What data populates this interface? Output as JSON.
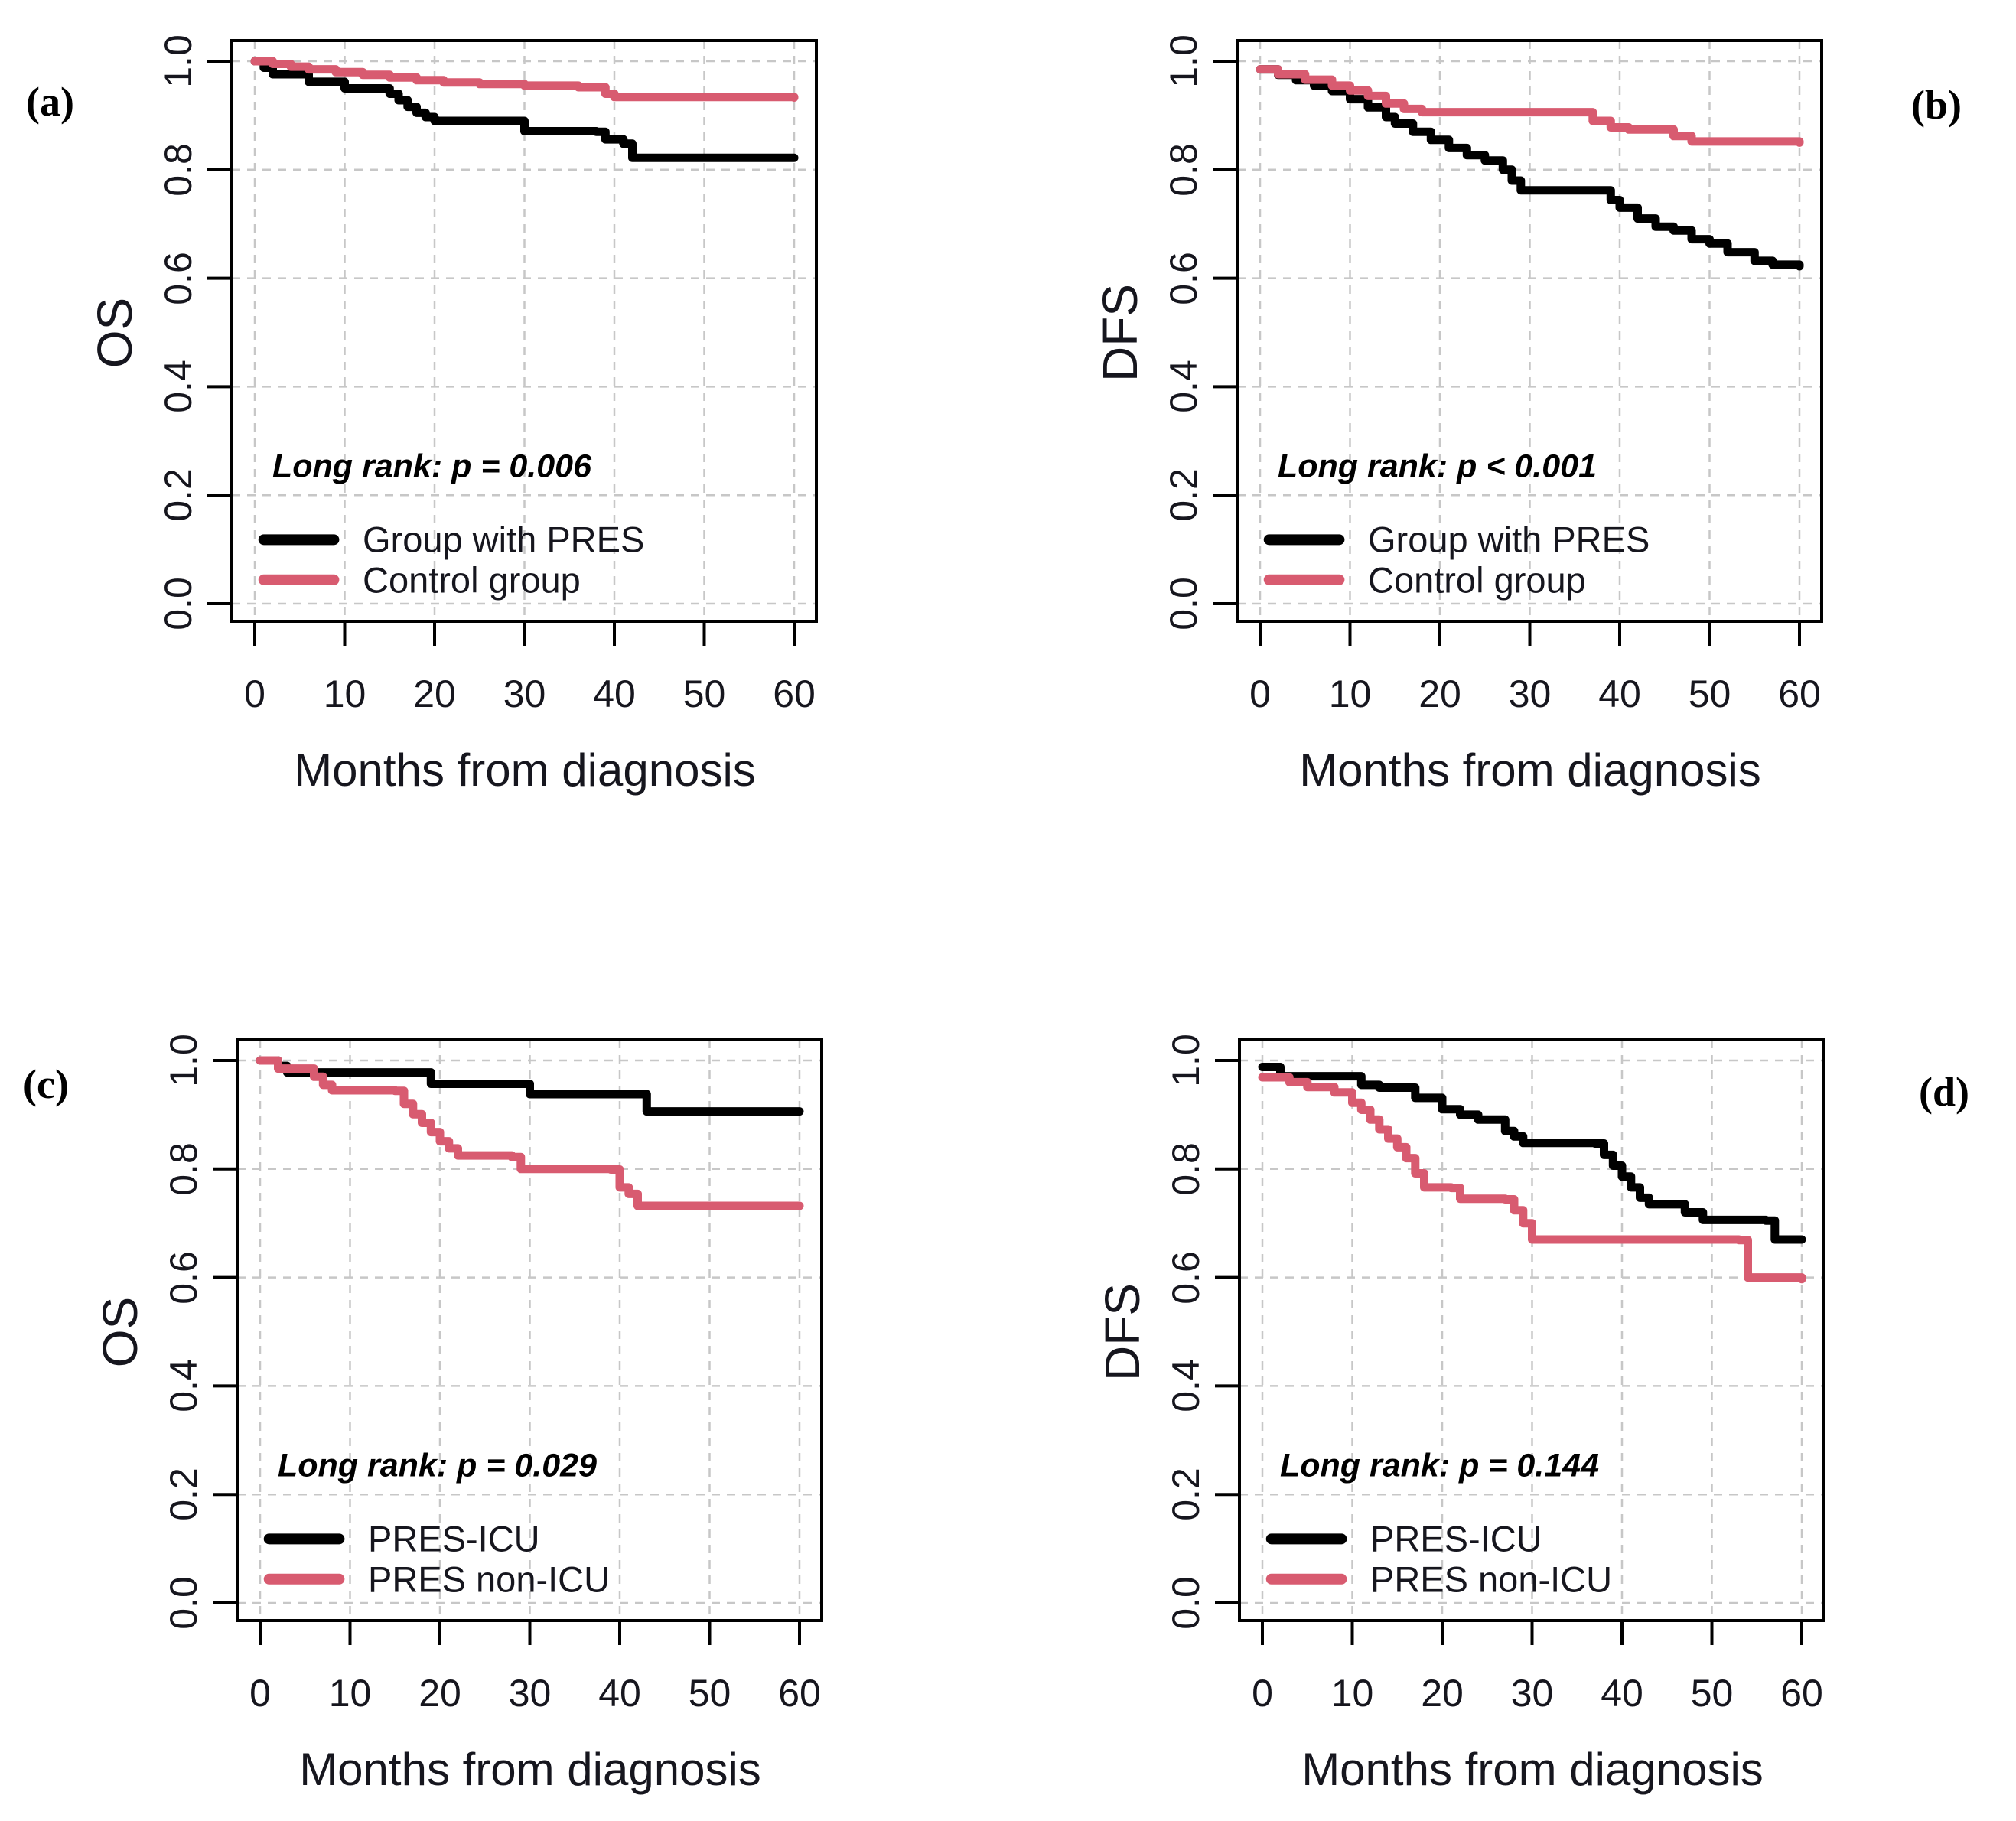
{
  "figure": {
    "background": "#FFFFFF"
  },
  "colors": {
    "series1": "#000000",
    "series2": "#D85B70",
    "grid": "#C7C7C7",
    "frame": "#000000",
    "text": "#16161E"
  },
  "panels": [
    {
      "id": "a",
      "letter": "(a)",
      "ylabel": "OS",
      "xlabel": "Months from diagnosis",
      "pvalue_text": "Long rank: p = 0.006",
      "x_tick_labels": [
        "0",
        "10",
        "20",
        "30",
        "40",
        "50",
        "60"
      ],
      "y_tick_labels": [
        "0.0",
        "0.2",
        "0.4",
        "0.6",
        "0.8",
        "1.0"
      ],
      "legend": [
        {
          "label": "Group with PRES",
          "color": "#000000"
        },
        {
          "label": "Control group",
          "color": "#D85B70"
        }
      ]
    },
    {
      "id": "b",
      "letter": "(b)",
      "ylabel": "DFS",
      "xlabel": "Months from diagnosis",
      "pvalue_text": "Long rank: p < 0.001",
      "x_tick_labels": [
        "0",
        "10",
        "20",
        "30",
        "40",
        "50",
        "60"
      ],
      "y_tick_labels": [
        "0.0",
        "0.2",
        "0.4",
        "0.6",
        "0.8",
        "1.0"
      ],
      "legend": [
        {
          "label": "Group with PRES",
          "color": "#000000"
        },
        {
          "label": "Control group",
          "color": "#D85B70"
        }
      ]
    },
    {
      "id": "c",
      "letter": "(c)",
      "ylabel": "OS",
      "xlabel": "Months from diagnosis",
      "pvalue_text": "Long rank: p = 0.029",
      "x_tick_labels": [
        "0",
        "10",
        "20",
        "30",
        "40",
        "50",
        "60"
      ],
      "y_tick_labels": [
        "0.0",
        "0.2",
        "0.4",
        "0.6",
        "0.8",
        "1.0"
      ],
      "legend": [
        {
          "label": "PRES-ICU",
          "color": "#000000"
        },
        {
          "label": "PRES non-ICU",
          "color": "#D85B70"
        }
      ]
    },
    {
      "id": "d",
      "letter": "(d)",
      "ylabel": "DFS",
      "xlabel": "Months from diagnosis",
      "pvalue_text": "Long rank: p = 0.144",
      "x_tick_labels": [
        "0",
        "10",
        "20",
        "30",
        "40",
        "50",
        "60"
      ],
      "y_tick_labels": [
        "0.0",
        "0.2",
        "0.4",
        "0.6",
        "0.8",
        "1.0"
      ],
      "legend": [
        {
          "label": "PRES-ICU",
          "color": "#000000"
        },
        {
          "label": "PRES non-ICU",
          "color": "#D85B70"
        }
      ]
    }
  ],
  "chart_data": [
    {
      "id": "a",
      "type": "line",
      "subtype": "kaplan-meier-step",
      "xlabel": "Months from diagnosis",
      "ylabel": "OS",
      "xlim": [
        0,
        60
      ],
      "ylim": [
        0.0,
        1.0
      ],
      "x_ticks": [
        0,
        10,
        20,
        30,
        40,
        50,
        60
      ],
      "y_ticks": [
        0.0,
        0.2,
        0.4,
        0.6,
        0.8,
        1.0
      ],
      "grid": true,
      "annotation": "Long rank: p = 0.006",
      "legend_position": "bottom-left-inside",
      "series": [
        {
          "name": "Group with PRES",
          "color": "#000000",
          "points": [
            [
              0,
              1.0
            ],
            [
              1,
              0.988
            ],
            [
              2,
              0.976
            ],
            [
              6,
              0.962
            ],
            [
              10,
              0.95
            ],
            [
              15,
              0.94
            ],
            [
              16,
              0.928
            ],
            [
              17,
              0.916
            ],
            [
              18,
              0.905
            ],
            [
              19,
              0.897
            ],
            [
              20,
              0.89
            ],
            [
              29,
              0.89
            ],
            [
              30,
              0.871
            ],
            [
              38,
              0.87
            ],
            [
              39,
              0.856
            ],
            [
              41,
              0.848
            ],
            [
              42,
              0.822
            ],
            [
              60,
              0.822
            ]
          ]
        },
        {
          "name": "Control group",
          "color": "#D85B70",
          "points": [
            [
              0,
              1.0
            ],
            [
              2,
              0.995
            ],
            [
              4,
              0.99
            ],
            [
              6,
              0.985
            ],
            [
              9,
              0.98
            ],
            [
              12,
              0.975
            ],
            [
              15,
              0.97
            ],
            [
              18,
              0.965
            ],
            [
              21,
              0.961
            ],
            [
              25,
              0.958
            ],
            [
              30,
              0.955
            ],
            [
              36,
              0.952
            ],
            [
              39,
              0.94
            ],
            [
              40,
              0.934
            ],
            [
              60,
              0.933
            ]
          ]
        }
      ]
    },
    {
      "id": "b",
      "type": "line",
      "subtype": "kaplan-meier-step",
      "xlabel": "Months from diagnosis",
      "ylabel": "DFS",
      "xlim": [
        0,
        60
      ],
      "ylim": [
        0.0,
        1.0
      ],
      "x_ticks": [
        0,
        10,
        20,
        30,
        40,
        50,
        60
      ],
      "y_ticks": [
        0.0,
        0.2,
        0.4,
        0.6,
        0.8,
        1.0
      ],
      "grid": true,
      "annotation": "Long rank: p < 0.001",
      "legend_position": "bottom-left-inside",
      "series": [
        {
          "name": "Group with PRES",
          "color": "#000000",
          "points": [
            [
              0,
              0.985
            ],
            [
              2,
              0.975
            ],
            [
              4,
              0.965
            ],
            [
              6,
              0.955
            ],
            [
              8,
              0.945
            ],
            [
              10,
              0.93
            ],
            [
              12,
              0.915
            ],
            [
              14,
              0.897
            ],
            [
              15,
              0.885
            ],
            [
              17,
              0.87
            ],
            [
              19,
              0.855
            ],
            [
              21,
              0.84
            ],
            [
              23,
              0.827
            ],
            [
              25,
              0.817
            ],
            [
              27,
              0.8
            ],
            [
              28,
              0.78
            ],
            [
              29,
              0.762
            ],
            [
              38,
              0.762
            ],
            [
              39,
              0.744
            ],
            [
              40,
              0.73
            ],
            [
              42,
              0.71
            ],
            [
              44,
              0.695
            ],
            [
              46,
              0.688
            ],
            [
              48,
              0.672
            ],
            [
              50,
              0.664
            ],
            [
              52,
              0.648
            ],
            [
              55,
              0.632
            ],
            [
              57,
              0.625
            ],
            [
              60,
              0.622
            ]
          ]
        },
        {
          "name": "Control group",
          "color": "#D85B70",
          "points": [
            [
              0,
              0.985
            ],
            [
              2,
              0.976
            ],
            [
              5,
              0.966
            ],
            [
              8,
              0.955
            ],
            [
              10,
              0.946
            ],
            [
              12,
              0.936
            ],
            [
              14,
              0.922
            ],
            [
              16,
              0.912
            ],
            [
              18,
              0.906
            ],
            [
              36,
              0.906
            ],
            [
              37,
              0.89
            ],
            [
              39,
              0.878
            ],
            [
              41,
              0.874
            ],
            [
              46,
              0.862
            ],
            [
              48,
              0.852
            ],
            [
              60,
              0.85
            ]
          ]
        }
      ]
    },
    {
      "id": "c",
      "type": "line",
      "subtype": "kaplan-meier-step",
      "xlabel": "Months from diagnosis",
      "ylabel": "OS",
      "xlim": [
        0,
        60
      ],
      "ylim": [
        0.0,
        1.0
      ],
      "x_ticks": [
        0,
        10,
        20,
        30,
        40,
        50,
        60
      ],
      "y_ticks": [
        0.0,
        0.2,
        0.4,
        0.6,
        0.8,
        1.0
      ],
      "grid": true,
      "annotation": "Long rank: p = 0.029",
      "legend_position": "bottom-left-inside",
      "series": [
        {
          "name": "PRES-ICU",
          "color": "#000000",
          "points": [
            [
              0,
              1.0
            ],
            [
              2,
              0.99
            ],
            [
              3,
              0.978
            ],
            [
              18,
              0.978
            ],
            [
              19,
              0.957
            ],
            [
              29,
              0.957
            ],
            [
              30,
              0.938
            ],
            [
              42,
              0.938
            ],
            [
              43,
              0.906
            ],
            [
              60,
              0.906
            ]
          ]
        },
        {
          "name": "PRES non-ICU",
          "color": "#D85B70",
          "points": [
            [
              0,
              1.0
            ],
            [
              2,
              0.985
            ],
            [
              6,
              0.97
            ],
            [
              7,
              0.955
            ],
            [
              8,
              0.945
            ],
            [
              15,
              0.944
            ],
            [
              16,
              0.92
            ],
            [
              17,
              0.901
            ],
            [
              18,
              0.885
            ],
            [
              19,
              0.868
            ],
            [
              20,
              0.851
            ],
            [
              21,
              0.838
            ],
            [
              22,
              0.825
            ],
            [
              28,
              0.822
            ],
            [
              29,
              0.8
            ],
            [
              39,
              0.799
            ],
            [
              40,
              0.766
            ],
            [
              41,
              0.754
            ],
            [
              42,
              0.732
            ],
            [
              60,
              0.732
            ]
          ]
        }
      ]
    },
    {
      "id": "d",
      "type": "line",
      "subtype": "kaplan-meier-step",
      "xlabel": "Months from diagnosis",
      "ylabel": "DFS",
      "xlim": [
        0,
        60
      ],
      "ylim": [
        0.0,
        1.0
      ],
      "x_ticks": [
        0,
        10,
        20,
        30,
        40,
        50,
        60
      ],
      "y_ticks": [
        0.0,
        0.2,
        0.4,
        0.6,
        0.8,
        1.0
      ],
      "grid": true,
      "annotation": "Long rank: p = 0.144",
      "legend_position": "bottom-left-inside",
      "series": [
        {
          "name": "PRES-ICU",
          "color": "#000000",
          "points": [
            [
              0,
              0.988
            ],
            [
              2,
              0.971
            ],
            [
              11,
              0.955
            ],
            [
              13,
              0.95
            ],
            [
              17,
              0.931
            ],
            [
              20,
              0.91
            ],
            [
              22,
              0.9
            ],
            [
              24,
              0.891
            ],
            [
              27,
              0.87
            ],
            [
              28,
              0.86
            ],
            [
              29,
              0.848
            ],
            [
              37,
              0.847
            ],
            [
              38,
              0.826
            ],
            [
              39,
              0.806
            ],
            [
              40,
              0.786
            ],
            [
              41,
              0.766
            ],
            [
              42,
              0.747
            ],
            [
              43,
              0.735
            ],
            [
              47,
              0.72
            ],
            [
              49,
              0.706
            ],
            [
              56,
              0.705
            ],
            [
              57,
              0.67
            ],
            [
              60,
              0.67
            ]
          ]
        },
        {
          "name": "PRES non-ICU",
          "color": "#D85B70",
          "points": [
            [
              0,
              0.969
            ],
            [
              3,
              0.96
            ],
            [
              5,
              0.951
            ],
            [
              8,
              0.941
            ],
            [
              10,
              0.922
            ],
            [
              11,
              0.909
            ],
            [
              12,
              0.891
            ],
            [
              13,
              0.873
            ],
            [
              14,
              0.856
            ],
            [
              15,
              0.84
            ],
            [
              16,
              0.82
            ],
            [
              17,
              0.792
            ],
            [
              18,
              0.766
            ],
            [
              21,
              0.765
            ],
            [
              22,
              0.745
            ],
            [
              27,
              0.744
            ],
            [
              28,
              0.724
            ],
            [
              29,
              0.7
            ],
            [
              30,
              0.67
            ],
            [
              53,
              0.669
            ],
            [
              54,
              0.6
            ],
            [
              60,
              0.597
            ]
          ]
        }
      ]
    }
  ]
}
